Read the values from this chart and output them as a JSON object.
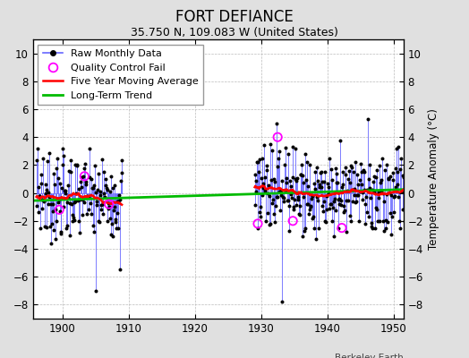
{
  "title": "FORT DEFIANCE",
  "subtitle": "35.750 N, 109.083 W (United States)",
  "ylabel": "Temperature Anomaly (°C)",
  "attribution": "Berkeley Earth",
  "xlim": [
    1895.5,
    1951.5
  ],
  "ylim": [
    -9,
    11
  ],
  "yticks": [
    -8,
    -6,
    -4,
    -2,
    0,
    2,
    4,
    6,
    8,
    10
  ],
  "xticks": [
    1900,
    1910,
    1920,
    1930,
    1940,
    1950
  ],
  "background_color": "#e0e0e0",
  "plot_bg_color": "#ffffff",
  "raw_color": "#6666ff",
  "raw_marker_color": "#000000",
  "qc_color": "#ff00ff",
  "moving_avg_color": "#ff0000",
  "trend_color": "#00bb00",
  "title_fontsize": 12,
  "subtitle_fontsize": 9,
  "tick_fontsize": 8.5,
  "ylabel_fontsize": 8.5,
  "legend_fontsize": 8
}
